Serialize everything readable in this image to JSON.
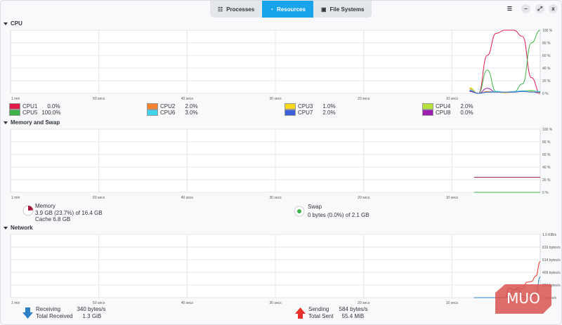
{
  "tabs": [
    {
      "label": "Processes",
      "icon": "list-icon"
    },
    {
      "label": "Resources",
      "icon": "gauge-icon",
      "active": true
    },
    {
      "label": "File Systems",
      "icon": "disk-icon"
    }
  ],
  "window_controls": {
    "menu": "☰",
    "minimize": "–",
    "maximize": "⤢",
    "close": "x"
  },
  "sections": {
    "cpu": "CPU",
    "memory": "Memory and Swap",
    "network": "Network"
  },
  "time_labels": [
    "1 min",
    "50 secs",
    "40 secs",
    "30 secs",
    "20 secs",
    "10 secs"
  ],
  "cpu_legend": [
    {
      "name": "CPU1",
      "value": "0.0%",
      "color": "#e01b4c"
    },
    {
      "name": "CPU2",
      "value": "2.0%",
      "color": "#f6832b"
    },
    {
      "name": "CPU3",
      "value": "1.0%",
      "color": "#f8d81d"
    },
    {
      "name": "CPU4",
      "value": "2.0%",
      "color": "#b6e33a"
    },
    {
      "name": "CPU5",
      "value": "100.0%",
      "color": "#3eb24a"
    },
    {
      "name": "CPU6",
      "value": "3.0%",
      "color": "#3fd4ea"
    },
    {
      "name": "CPU7",
      "value": "2.0%",
      "color": "#3d5fd8"
    },
    {
      "name": "CPU8",
      "value": "0.0%",
      "color": "#9b1eb0"
    }
  ],
  "memory": {
    "label": "Memory",
    "usage": "3.9 GB (23.7%) of 16.4 GB",
    "cache": "Cache 6.8 GB",
    "color": "#a8163d",
    "fraction": 0.237
  },
  "swap": {
    "label": "Swap",
    "usage": "0 bytes (0.0%) of 2.1 GB",
    "color": "#3eb24a",
    "fraction": 0.0
  },
  "network": {
    "receiving_label": "Receiving",
    "receiving": "340 bytes/s",
    "total_received_label": "Total Received",
    "total_received": "1.3 GiB",
    "sending_label": "Sending",
    "sending": "584 bytes/s",
    "total_sent_label": "Total Sent",
    "total_sent": "55.4 MiB"
  },
  "watermark": "MUO",
  "chart_data": [
    {
      "type": "line",
      "name": "cpu",
      "xlim": [
        60,
        0
      ],
      "ylim": [
        0,
        100
      ],
      "y_ticks": [
        "100 %",
        "80 %",
        "60 %",
        "40 %",
        "20 %",
        "0 %"
      ],
      "x_tick_labels": [
        "1 min",
        "50 secs",
        "40 secs",
        "30 secs",
        "20 secs",
        "10 secs"
      ],
      "grid": true,
      "x": [
        8,
        7,
        6,
        5,
        4,
        3,
        2,
        1,
        0
      ],
      "series": [
        {
          "name": "CPU1",
          "color": "#e01b4c",
          "values": [
            5,
            0,
            60,
            95,
            100,
            100,
            90,
            25,
            0
          ]
        },
        {
          "name": "CPU5",
          "color": "#3eb24a",
          "values": [
            4,
            0,
            37,
            3,
            2,
            2,
            15,
            80,
            100
          ]
        },
        {
          "name": "CPU8",
          "color": "#9b1eb0",
          "values": [
            3,
            0,
            8,
            2,
            1,
            2,
            3,
            3,
            0
          ]
        },
        {
          "name": "CPU2",
          "color": "#f6832b",
          "values": [
            7,
            0,
            3,
            2,
            2,
            3,
            4,
            4,
            2
          ]
        },
        {
          "name": "CPU3",
          "color": "#f8d81d",
          "values": [
            9,
            0,
            2,
            2,
            1,
            2,
            3,
            3,
            1
          ]
        },
        {
          "name": "CPU4",
          "color": "#b6e33a",
          "values": [
            8,
            0,
            2,
            2,
            2,
            2,
            4,
            5,
            2
          ]
        },
        {
          "name": "CPU6",
          "color": "#3fd4ea",
          "values": [
            5,
            0,
            2,
            3,
            2,
            3,
            4,
            4,
            3
          ]
        },
        {
          "name": "CPU7",
          "color": "#3d5fd8",
          "values": [
            4,
            0,
            2,
            2,
            2,
            2,
            3,
            2,
            2
          ]
        }
      ]
    },
    {
      "type": "line",
      "name": "memory",
      "xlim": [
        60,
        0
      ],
      "ylim": [
        0,
        100
      ],
      "y_ticks": [
        "100 %",
        "80 %",
        "60 %",
        "40 %",
        "20 %",
        "0 %"
      ],
      "x_tick_labels": [
        "1 min",
        "50 secs",
        "40 secs",
        "30 secs",
        "20 secs",
        "10 secs"
      ],
      "grid": true,
      "x": [
        7.5,
        0
      ],
      "series": [
        {
          "name": "Memory",
          "color": "#a8163d",
          "values": [
            23.7,
            23.7
          ]
        },
        {
          "name": "Swap",
          "color": "#3eb24a",
          "values": [
            0,
            0
          ]
        }
      ]
    },
    {
      "type": "line",
      "name": "network",
      "xlim": [
        60,
        0
      ],
      "ylim": [
        0,
        1024
      ],
      "y_ticks": [
        "1.0 KiB/s",
        "819 bytes/s",
        "614 bytes/s",
        "409 bytes/s",
        "204 bytes/s",
        "0 bytes/s"
      ],
      "x_tick_labels": [
        "1 min",
        "50 secs",
        "40 secs",
        "30 secs",
        "20 secs",
        "10 secs"
      ],
      "grid": true,
      "x": [
        7.5,
        5,
        4,
        3.5,
        3,
        2.5,
        2,
        1.5,
        1,
        0.5,
        0
      ],
      "series": [
        {
          "name": "Sending",
          "color": "#e8322b",
          "values": [
            0,
            0,
            0,
            150,
            130,
            160,
            140,
            250,
            260,
            350,
            584
          ]
        },
        {
          "name": "Receiving",
          "color": "#2d7fc8",
          "values": [
            0,
            0,
            0,
            20,
            130,
            130,
            20,
            10,
            20,
            40,
            340
          ]
        }
      ]
    }
  ]
}
